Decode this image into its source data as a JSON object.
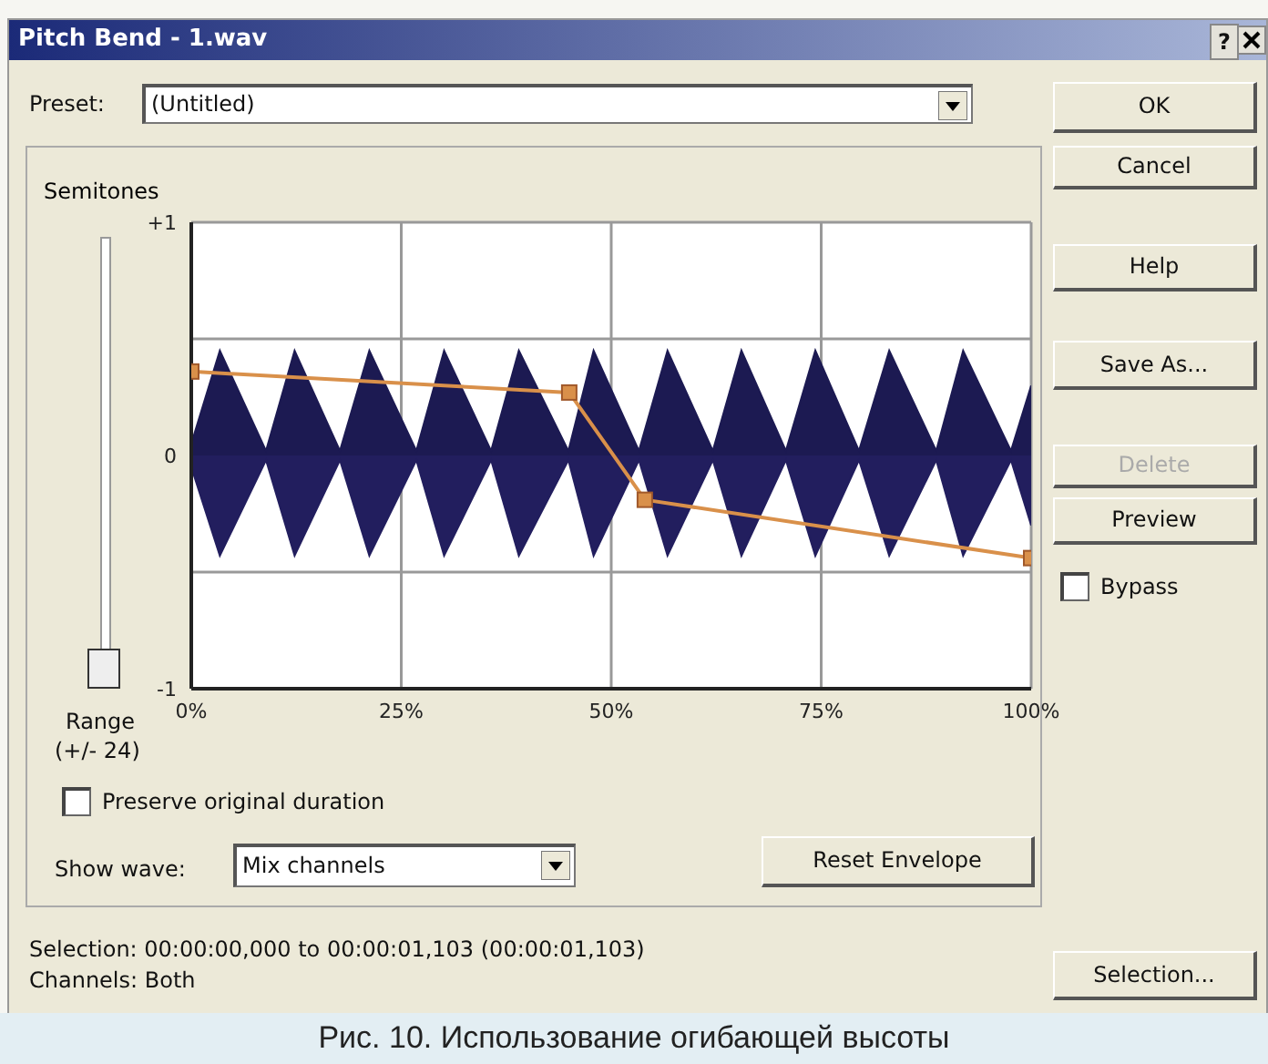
{
  "chart_data": {
    "type": "line",
    "title": "Pitch Bend - 1.wav",
    "ylabel": "Semitones",
    "xlim": [
      0,
      100
    ],
    "ylim": [
      -1,
      1
    ],
    "xticks": [
      {
        "value": 0,
        "label": "0%"
      },
      {
        "value": 25,
        "label": "25%"
      },
      {
        "value": 50,
        "label": "50%"
      },
      {
        "value": 75,
        "label": "75%"
      },
      {
        "value": 100,
        "label": "100%"
      }
    ],
    "yticks": [
      {
        "value": -1,
        "label": "-1"
      },
      {
        "value": -0.5,
        "label": null
      },
      {
        "value": 0,
        "label": "0"
      },
      {
        "value": 0.5,
        "label": null
      },
      {
        "value": 1,
        "label": "+1"
      }
    ],
    "grid": true,
    "series": [
      {
        "type": "area",
        "color": "#1c1a52",
        "x": [
          0,
          3.4,
          8.9,
          12.3,
          17.7,
          21.2,
          26.8,
          30.1,
          35.7,
          39,
          44.9,
          47.9,
          53.3,
          56.7,
          62.1,
          65.5,
          70.8,
          74.3,
          79.5,
          83.1,
          88.7,
          91.9,
          97.6,
          100
        ],
        "values": [
          0.05,
          0.45,
          0.02,
          0.45,
          0.02,
          0.45,
          0.02,
          0.45,
          0.02,
          0.45,
          0.02,
          0.45,
          0.02,
          0.45,
          0.02,
          0.45,
          0.02,
          0.45,
          0.02,
          0.45,
          0.02,
          0.45,
          0.02,
          0.3
        ]
      },
      {
        "type": "line",
        "color": "#d9904a",
        "marker": "square",
        "x": [
          0,
          45,
          54,
          100
        ],
        "values": [
          0.36,
          0.27,
          -0.19,
          -0.44
        ]
      },
      {
        "type": "area",
        "color": "#221e5e",
        "x": [
          0,
          3.4,
          8.9,
          12.3,
          17.7,
          21.2,
          26.8,
          30.1,
          35.7,
          39,
          44.9,
          47.9,
          53.3,
          56.7,
          62.1,
          65.5,
          70.8,
          74.3,
          79.5,
          83.1,
          88.7,
          91.9,
          97.6,
          100
        ],
        "values": [
          -0.05,
          -0.43,
          -0.02,
          -0.43,
          -0.02,
          -0.43,
          -0.02,
          -0.43,
          -0.02,
          -0.43,
          -0.02,
          -0.43,
          -0.02,
          -0.43,
          -0.02,
          -0.43,
          -0.02,
          -0.43,
          -0.02,
          -0.43,
          -0.02,
          -0.43,
          -0.02,
          -0.3
        ]
      }
    ],
    "annotations": [
      "?",
      "Preset:",
      "(Untitled)",
      "OK",
      "Cancel",
      "Help",
      "Save As...",
      "Delete",
      "Preview",
      "Bypass",
      "Range",
      "(+/- 24)",
      "Preserve original duration",
      "Show wave:",
      "Mix channels",
      "Reset Envelope",
      "Selection:  00:00:00,000 to 00:00:01,103 (00:00:01,103)",
      "Channels:  Both",
      "Selection...",
      "Рис. 10. Использование огибающей высоты"
    ]
  }
}
